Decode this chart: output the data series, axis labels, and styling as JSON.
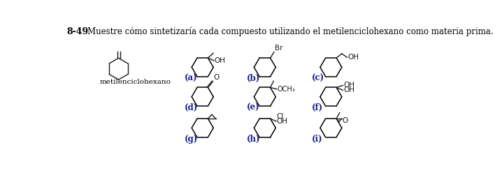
{
  "title_num": "8-49",
  "title_text": "Muestre cómo sintetizaría cada compuesto utilizando el metilenciclohexano como materia prima.",
  "starting_material_label": "metilenciclohexano",
  "background_color": "#ffffff",
  "text_color": "#000000",
  "label_color": "#1a1a8c",
  "bond_color": "#1a1a1a",
  "compound_labels": [
    "(a)",
    "(b)",
    "(c)",
    "(d)",
    "(e)",
    "(f)",
    "(g)",
    "(h)",
    "(i)"
  ]
}
